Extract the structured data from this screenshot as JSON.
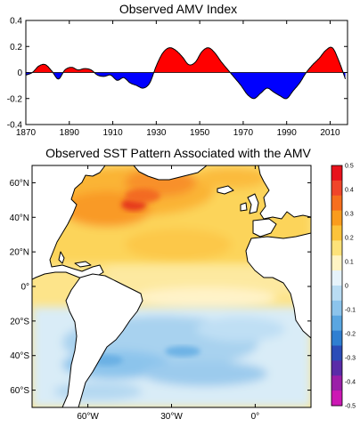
{
  "chart_data": [
    {
      "type": "area",
      "title": "Observed AMV Index",
      "xlabel": "",
      "ylabel": "",
      "xlim": [
        1870,
        2018
      ],
      "ylim": [
        -0.4,
        0.4
      ],
      "x_ticks": [
        1870,
        1890,
        1910,
        1930,
        1950,
        1970,
        1990,
        2010
      ],
      "y_ticks": [
        -0.4,
        -0.2,
        0,
        0.2,
        0.4
      ],
      "x_tick_labels": [
        "1870",
        "1890",
        "1910",
        "1930",
        "1950",
        "1970",
        "1990",
        "2010"
      ],
      "y_tick_labels": [
        "-0.4",
        "-0.2",
        "0",
        "0.2",
        "0.4"
      ],
      "positive_color": "#ff0000",
      "negative_color": "#0000ff",
      "series": [
        {
          "x": [
            1870,
            1873,
            1876,
            1879,
            1882,
            1885,
            1888,
            1891,
            1894,
            1897,
            1900,
            1903,
            1906,
            1909,
            1912,
            1915,
            1918,
            1921,
            1924,
            1927,
            1930,
            1933,
            1936,
            1939,
            1942,
            1945,
            1948,
            1951,
            1954,
            1957,
            1960,
            1963,
            1966,
            1969,
            1972,
            1975,
            1978,
            1981,
            1984,
            1987,
            1990,
            1993,
            1996,
            1999,
            2002,
            2005,
            2008,
            2011,
            2014,
            2017
          ],
          "values": [
            -0.02,
            0.0,
            0.05,
            0.06,
            0.01,
            -0.05,
            0.02,
            0.04,
            0.02,
            0.03,
            0.02,
            -0.02,
            -0.03,
            -0.02,
            -0.06,
            -0.04,
            -0.08,
            -0.1,
            -0.12,
            -0.08,
            0.05,
            0.15,
            0.19,
            0.17,
            0.12,
            0.06,
            0.08,
            0.16,
            0.19,
            0.15,
            0.08,
            0.02,
            -0.04,
            -0.1,
            -0.17,
            -0.2,
            -0.16,
            -0.12,
            -0.15,
            -0.18,
            -0.2,
            -0.14,
            -0.08,
            0.0,
            0.06,
            0.11,
            0.17,
            0.19,
            0.09,
            -0.05
          ]
        }
      ]
    },
    {
      "type": "heatmap",
      "title": "Observed SST Pattern Associated with the AMV",
      "xlabel": "",
      "ylabel": "",
      "xlim": [
        -80,
        20
      ],
      "ylim": [
        -70,
        70
      ],
      "x_tick_labels": [
        "60°W",
        "30°W",
        "0°"
      ],
      "x_ticks": [
        -60,
        -30,
        0
      ],
      "y_tick_labels": [
        "60°N",
        "40°N",
        "20°N",
        "0°",
        "20°S",
        "40°S",
        "60°S"
      ],
      "y_ticks": [
        60,
        40,
        20,
        0,
        -20,
        -40,
        -60
      ],
      "colorbar_ticks": [
        "0.5",
        "0.4",
        "0.3",
        "0.2",
        "0.1",
        "0",
        "-0.1",
        "-0.2",
        "-0.3",
        "-0.4",
        "-0.5"
      ],
      "colorbar_values": [
        0.5,
        0.4,
        0.3,
        0.2,
        0.1,
        0,
        -0.1,
        -0.2,
        -0.3,
        -0.4,
        -0.5
      ],
      "colorbar_colors": [
        "#e8121c",
        "#f0452a",
        "#f66f1e",
        "#fa9c1d",
        "#fcc33a",
        "#fde27a",
        "#fff4c4",
        "#e6f3fb",
        "#b9dcf3",
        "#8cc4ec",
        "#5aa6e1",
        "#2f7fd1",
        "#2b4cb8",
        "#5a2ca8",
        "#9b1fa8",
        "#cc18b4"
      ],
      "land_color": "#ffffff",
      "ocean_base_color": "#fde48a"
    }
  ]
}
